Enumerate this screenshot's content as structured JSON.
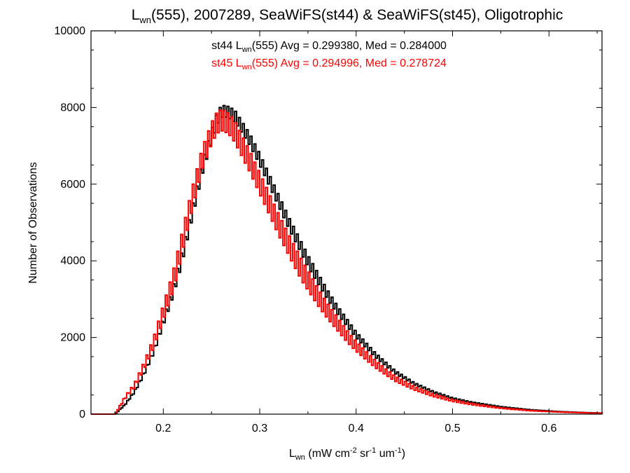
{
  "chart_data": {
    "type": "line",
    "title": {
      "prefix": "L",
      "sub": "wn",
      "rest": "(555), 2007289, SeaWiFS(st44) & SeaWiFS(st45), Oligotrophic"
    },
    "xlabel": {
      "prefix": "L",
      "sub": "wn",
      "unit_open": " (mW cm",
      "unit_cm_exp": "-2",
      "unit_sr": " sr",
      "unit_sr_exp": "-1",
      "unit_um": " um",
      "unit_um_exp": "-1",
      "unit_close": ")"
    },
    "ylabel": "Number of Observations",
    "xlim": [
      0.125,
      0.655
    ],
    "ylim": [
      0,
      10000
    ],
    "x_ticks": [
      "0.2",
      "0.3",
      "0.4",
      "0.5",
      "0.6"
    ],
    "y_ticks": [
      "0",
      "2000",
      "4000",
      "6000",
      "8000",
      "10000"
    ],
    "grid": false,
    "step": "histogram",
    "annotations": [
      {
        "color": "#000000",
        "pre": "st44 L",
        "sub": "wn",
        "post": "(555) Avg = 0.299380, Med = 0.284000"
      },
      {
        "color": "#ff0000",
        "pre": "st45 L",
        "sub": "wn",
        "post": "(555) Avg = 0.294996, Med = 0.278724"
      }
    ],
    "series": [
      {
        "color": "#000000",
        "x": [
          0.15,
          0.16,
          0.17,
          0.18,
          0.19,
          0.2,
          0.21,
          0.22,
          0.23,
          0.24,
          0.25,
          0.255,
          0.26,
          0.265,
          0.27,
          0.275,
          0.28,
          0.29,
          0.3,
          0.31,
          0.32,
          0.33,
          0.34,
          0.35,
          0.36,
          0.37,
          0.38,
          0.39,
          0.4,
          0.42,
          0.44,
          0.46,
          0.48,
          0.5,
          0.52,
          0.55,
          0.58,
          0.61,
          0.64,
          0.655
        ],
        "y": [
          0,
          250,
          600,
          1100,
          1700,
          2500,
          3300,
          4300,
          5400,
          6500,
          7400,
          7800,
          8050,
          8050,
          8000,
          7900,
          7700,
          7300,
          6800,
          6250,
          5700,
          5150,
          4650,
          4150,
          3700,
          3250,
          2850,
          2500,
          2150,
          1600,
          1150,
          830,
          600,
          430,
          320,
          200,
          120,
          70,
          40,
          30
        ],
        "wiggle": 300
      },
      {
        "color": "#ff0000",
        "x": [
          0.15,
          0.16,
          0.17,
          0.18,
          0.19,
          0.2,
          0.21,
          0.22,
          0.23,
          0.24,
          0.25,
          0.255,
          0.26,
          0.265,
          0.27,
          0.275,
          0.28,
          0.29,
          0.3,
          0.31,
          0.32,
          0.33,
          0.34,
          0.35,
          0.36,
          0.37,
          0.38,
          0.39,
          0.4,
          0.42,
          0.44,
          0.46,
          0.48,
          0.5,
          0.52,
          0.55,
          0.58,
          0.61,
          0.64,
          0.655
        ],
        "y": [
          0,
          450,
          800,
          1350,
          2000,
          2850,
          3700,
          4800,
          5900,
          6900,
          7600,
          7850,
          7950,
          7900,
          7800,
          7600,
          7350,
          6850,
          6300,
          5750,
          5200,
          4700,
          4200,
          3750,
          3300,
          2900,
          2550,
          2200,
          1900,
          1400,
          1000,
          730,
          530,
          380,
          280,
          170,
          100,
          60,
          35,
          25
        ],
        "wiggle": 550
      }
    ]
  }
}
